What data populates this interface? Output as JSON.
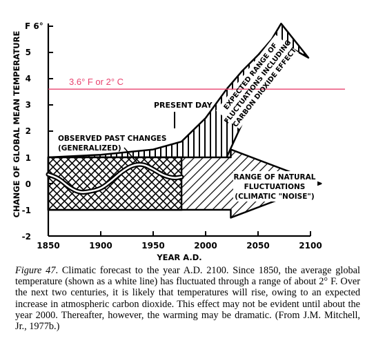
{
  "chart_data": {
    "type": "area",
    "ylabel": "CHANGE OF GLOBAL MEAN TEMPERATURE",
    "xlabel": "YEAR A.D.",
    "y_unit_label": "F 6°",
    "x_ticks": [
      "1850",
      "1900",
      "1950",
      "2000",
      "2050",
      "2100"
    ],
    "y_ticks": [
      "5",
      "4",
      "3",
      "2",
      "1",
      "0",
      "-1",
      "-2"
    ],
    "xlim": [
      1850,
      2100
    ],
    "ylim": [
      -2,
      6
    ],
    "reference_line": {
      "label": "3.6° F or 2° C",
      "value": 3.6,
      "color": "#e8426e"
    },
    "present_day": {
      "label": "PRESENT DAY",
      "year": 1977
    },
    "observed": {
      "label_line1": "OBSERVED PAST CHANGES",
      "label_line2": "(GENERALIZED)",
      "x": [
        1850,
        1860,
        1870,
        1880,
        1890,
        1900,
        1910,
        1920,
        1930,
        1940,
        1950,
        1960,
        1970,
        1977
      ],
      "y": [
        0.35,
        0.2,
        -0.15,
        -0.35,
        -0.3,
        -0.2,
        0.1,
        0.45,
        0.7,
        0.75,
        0.55,
        0.3,
        0.2,
        0.25
      ]
    },
    "natural_range": {
      "label_line1": "RANGE OF NATURAL",
      "label_line2": "FLUCTUATIONS",
      "label_line3": "(CLIMATIC \"NOISE\")",
      "y_min": -1.0,
      "y_max": 1.0,
      "x_end": 2110
    },
    "expected_range": {
      "label_line1": "EXPECTED RANGE OF",
      "label_line2": "FLUCTUATIONS INCLUDING",
      "label_line3": "CARBON DIOXIDE EFFECT",
      "lower": [
        [
          1977,
          -1.0
        ],
        [
          2000,
          -0.3
        ],
        [
          2020,
          1.0
        ],
        [
          2035,
          2.3
        ],
        [
          2050,
          3.5
        ],
        [
          2065,
          4.5
        ],
        [
          2080,
          5.2
        ]
      ],
      "upper": [
        [
          1850,
          1.0
        ],
        [
          1900,
          1.1
        ],
        [
          1950,
          1.3
        ],
        [
          1977,
          1.6
        ],
        [
          2000,
          2.5
        ],
        [
          2020,
          3.6
        ],
        [
          2035,
          4.3
        ],
        [
          2050,
          4.9
        ],
        [
          2063,
          5.5
        ],
        [
          2072,
          6.1
        ]
      ],
      "arrow_tip": [
        2098,
        4.8
      ]
    }
  },
  "caption": {
    "figure_label": "Figure 47",
    "text": ". Climatic forecast to the year A.D. 2100. Since 1850, the average global temperature (shown as a white line) has fluctuated through a range of about 2° F. Over the next two centuries, it is likely that temperatures will rise, owing to an expected increase in atmospheric carbon dioxide. This effect may not be evident until about the year 2000. Thereafter, however, the warming may be dramatic. (From J.M. Mitchell, Jr., 1977b.)"
  }
}
